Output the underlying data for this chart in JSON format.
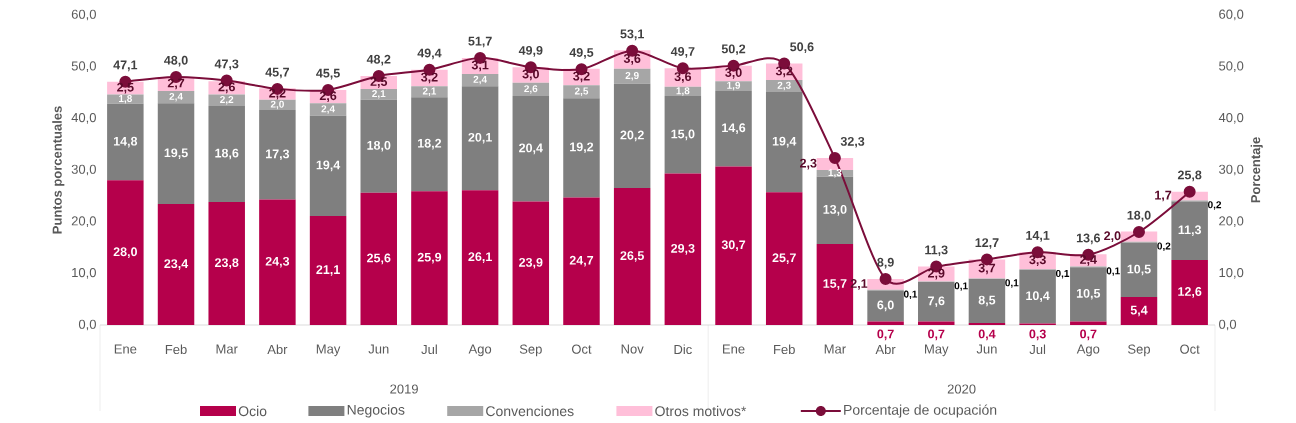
{
  "chart_data": {
    "type": "bar",
    "stacked": true,
    "ylabel": "Puntos porcentuales",
    "y2label": "Porcentaje",
    "categories": [
      "Ene",
      "Feb",
      "Mar",
      "Abr",
      "May",
      "Jun",
      "Jul",
      "Ago",
      "Sep",
      "Oct",
      "Nov",
      "Dic",
      "Ene",
      "Feb",
      "Mar",
      "Abr",
      "May",
      "Jun",
      "Jul",
      "Ago",
      "Sep",
      "Oct"
    ],
    "series": [
      {
        "name": "Ocio",
        "color": "#b5004b",
        "values": [
          28.0,
          23.4,
          23.8,
          24.3,
          21.1,
          25.6,
          25.9,
          26.1,
          23.9,
          24.7,
          26.5,
          29.3,
          30.7,
          25.7,
          15.7,
          0.7,
          0.7,
          0.4,
          0.3,
          0.7,
          5.4,
          12.6
        ],
        "value_labels": [
          "28,0",
          "23,4",
          "23,8",
          "24,3",
          "21,1",
          "25,6",
          "25,9",
          "26,1",
          "23,9",
          "24,7",
          "26,5",
          "29,3",
          "30,7",
          "25,7",
          "15,7",
          "0,7",
          "0,7",
          "0,4",
          "0,3",
          "0,7",
          "5,4",
          "12,6"
        ]
      },
      {
        "name": "Negocios",
        "color": "#7f7f7f",
        "values": [
          14.8,
          19.5,
          18.6,
          17.3,
          19.4,
          18.0,
          18.2,
          20.1,
          20.4,
          19.2,
          20.2,
          15.0,
          14.6,
          19.4,
          13.0,
          6.0,
          7.6,
          8.5,
          10.4,
          10.5,
          10.5,
          11.3
        ],
        "value_labels": [
          "14,8",
          "19,5",
          "18,6",
          "17,3",
          "19,4",
          "18,0",
          "18,2",
          "20,1",
          "20,4",
          "19,2",
          "20,2",
          "15,0",
          "14,6",
          "19,4",
          "13,0",
          "6,0",
          "7,6",
          "8,5",
          "10,4",
          "10,5",
          "10,5",
          "11,3"
        ]
      },
      {
        "name": "Convenciones",
        "color": "#a6a6a6",
        "values": [
          1.8,
          2.4,
          2.2,
          2.0,
          2.4,
          2.1,
          2.1,
          2.4,
          2.6,
          2.5,
          2.9,
          1.8,
          1.9,
          2.3,
          1.3,
          0.1,
          0.1,
          0.1,
          0.1,
          0.1,
          0.2,
          0.2
        ],
        "value_labels": [
          "1,8",
          "2,4",
          "2,2",
          "2,0",
          "2,4",
          "2,1",
          "2,1",
          "2,4",
          "2,6",
          "2,5",
          "2,9",
          "1,8",
          "1,9",
          "2,3",
          "1,3",
          "0,1",
          "0,1",
          "0,1",
          "0,1",
          "0,1",
          "0,2",
          "0,2"
        ]
      },
      {
        "name": "Otros motivos*",
        "color": "#ffbfd9",
        "values": [
          2.5,
          2.7,
          2.6,
          2.2,
          2.6,
          2.5,
          3.2,
          3.1,
          3.0,
          3.2,
          3.6,
          3.6,
          3.0,
          3.2,
          2.3,
          2.1,
          2.9,
          3.7,
          3.3,
          2.4,
          2.0,
          1.7
        ],
        "value_labels": [
          "2,5",
          "2,7",
          "2,6",
          "2,2",
          "2,6",
          "2,5",
          "3,2",
          "3,1",
          "3,0",
          "3,2",
          "3,6",
          "3,6",
          "3,0",
          "3,2",
          "2,3",
          "2,1",
          "2,9",
          "3,7",
          "3,3",
          "2,4",
          "2,0",
          "1,7"
        ]
      },
      {
        "name": "Porcentaje de ocupación",
        "type": "line",
        "axis": "y2",
        "marker": "circle",
        "line_style": "solid",
        "color": "#7b0d3a",
        "values": [
          47.1,
          48.0,
          47.3,
          45.7,
          45.5,
          48.2,
          49.4,
          51.7,
          49.9,
          49.5,
          53.1,
          49.7,
          50.2,
          50.6,
          32.3,
          8.9,
          11.3,
          12.7,
          14.1,
          13.6,
          18.0,
          25.8
        ],
        "value_labels": [
          "47,1",
          "48,0",
          "47,3",
          "45,7",
          "45,5",
          "48,2",
          "49,4",
          "51,7",
          "49,9",
          "49,5",
          "53,1",
          "49,7",
          "50,2",
          "50,6",
          "32,3",
          "8,9",
          "11,3",
          "12,7",
          "14,1",
          "13,6",
          "18,0",
          "25,8"
        ]
      }
    ],
    "ylim": [
      0,
      60
    ],
    "yticks": [
      {
        "value": 0,
        "label": "0,0"
      },
      {
        "value": 10,
        "label": "10,0"
      },
      {
        "value": 20,
        "label": "20,0"
      },
      {
        "value": 30,
        "label": "30,0"
      },
      {
        "value": 40,
        "label": "40,0"
      },
      {
        "value": 50,
        "label": "50,0"
      },
      {
        "value": 60,
        "label": "60,0"
      }
    ],
    "y2lim": [
      0,
      60
    ],
    "y2ticks": [
      {
        "value": 0,
        "label": "0,0"
      },
      {
        "value": 10,
        "label": "10,0"
      },
      {
        "value": 20,
        "label": "20,0"
      },
      {
        "value": 30,
        "label": "30,0"
      },
      {
        "value": 40,
        "label": "40,0"
      },
      {
        "value": 50,
        "label": "50,0"
      },
      {
        "value": 60,
        "label": "60,0"
      }
    ],
    "annotations": [
      "2019",
      "2020"
    ],
    "legend": "bottom"
  }
}
